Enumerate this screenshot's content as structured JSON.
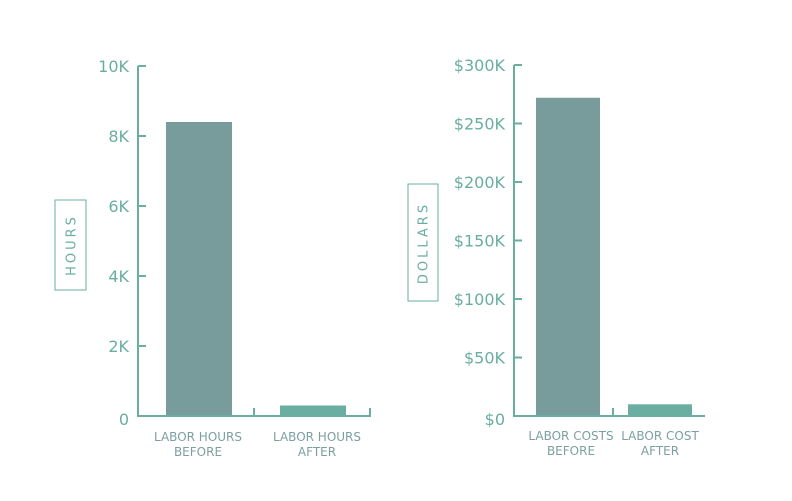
{
  "colors": {
    "axis": "#6aaea1",
    "bar_before": "#789b9c",
    "bar_after": "#6aaea1",
    "label": "#7c9fa0",
    "tick_text": "#6aaea1"
  },
  "chart_data": [
    {
      "type": "bar",
      "ylabel": "HOURS",
      "ylim": [
        0,
        10000
      ],
      "yticks": [
        {
          "value": 0,
          "label": "0"
        },
        {
          "value": 2000,
          "label": "2K"
        },
        {
          "value": 4000,
          "label": "4K"
        },
        {
          "value": 6000,
          "label": "6K"
        },
        {
          "value": 8000,
          "label": "8K"
        },
        {
          "value": 10000,
          "label": "10K"
        }
      ],
      "categories": [
        [
          "LABOR HOURS",
          "BEFORE"
        ],
        [
          "LABOR HOURS",
          "AFTER"
        ]
      ],
      "values": [
        8400,
        300
      ],
      "grid": false,
      "legend": "none"
    },
    {
      "type": "bar",
      "ylabel": "DOLLARS",
      "ylim": [
        0,
        300000
      ],
      "yticks": [
        {
          "value": 0,
          "label": "$0"
        },
        {
          "value": 50000,
          "label": "$50K"
        },
        {
          "value": 100000,
          "label": "$100K"
        },
        {
          "value": 150000,
          "label": "$150K"
        },
        {
          "value": 200000,
          "label": "$200K"
        },
        {
          "value": 250000,
          "label": "$250K"
        },
        {
          "value": 300000,
          "label": "$300K"
        }
      ],
      "categories": [
        [
          "LABOR COSTS",
          "BEFORE"
        ],
        [
          "LABOR COST",
          "AFTER"
        ]
      ],
      "values": [
        272000,
        10000
      ],
      "grid": false,
      "legend": "none"
    }
  ]
}
